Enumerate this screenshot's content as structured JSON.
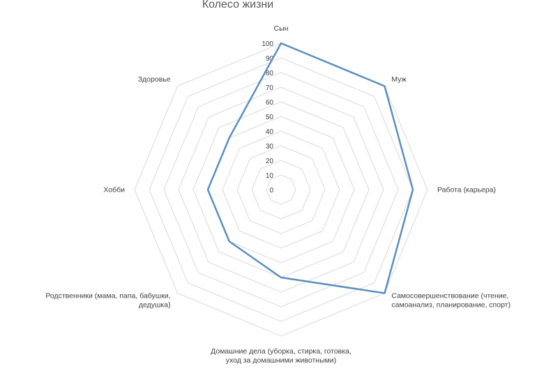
{
  "chart_data": {
    "type": "radar",
    "title": "Колесо жизни",
    "categories": [
      "Сын",
      "Муж",
      "Работа (карьера)",
      "Самосовершенствование (чтение, самоанализ, планирование, спорт)",
      "Домашние дела (уборка, стирка, готовка, уход за домашними животными)",
      "Родственники (мама, папа, бабушки, дедушка)",
      "Хобби",
      "Здоровье"
    ],
    "category_lines": [
      [
        "Сын"
      ],
      [
        "Муж"
      ],
      [
        "Работа (карьера)"
      ],
      [
        "Самосовершенствование (чтение,",
        "самоанализ, планирование, спорт)"
      ],
      [
        "Домашние дела (уборка, стирка, готовка,",
        "уход за домашними животными)"
      ],
      [
        "Родственники (мама, папа, бабушки,",
        "дедушка)"
      ],
      [
        "Хобби"
      ],
      [
        "Здоровье"
      ]
    ],
    "series": [
      {
        "values": [
          100,
          100,
          90,
          100,
          60,
          50,
          50,
          50
        ],
        "color": "#5b8fbf"
      }
    ],
    "ticks": [
      "0",
      "10",
      "20",
      "30",
      "40",
      "50",
      "60",
      "70",
      "80",
      "90",
      "100"
    ],
    "rlim": [
      0,
      100
    ],
    "grid": true,
    "grid_color": "#d9d9d9"
  }
}
